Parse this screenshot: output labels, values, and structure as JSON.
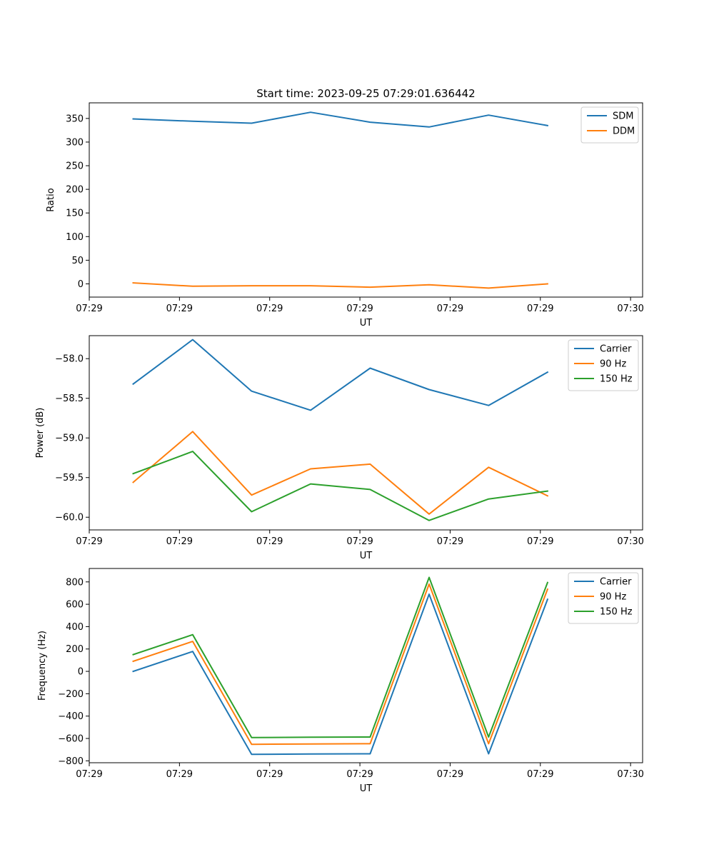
{
  "chart_data": [
    {
      "type": "line",
      "title": "Start time: 2023-09-25 07:29:01.636442",
      "xlabel": "UT",
      "ylabel": "Ratio",
      "xlim": [
        0,
        9.2
      ],
      "ylim": [
        -28,
        383
      ],
      "xtick_positions": [
        0,
        1.5,
        3,
        4.5,
        6,
        7.5,
        9
      ],
      "xticks": [
        "07:29",
        "07:29",
        "07:29",
        "07:29",
        "07:29",
        "07:29",
        "07:30"
      ],
      "yticks": [
        0,
        50,
        100,
        150,
        200,
        250,
        300,
        350
      ],
      "ytick_labels": [
        "0",
        "50",
        "100",
        "150",
        "200",
        "250",
        "300",
        "350"
      ],
      "legend_position": "top-right",
      "x": [
        0.73,
        1.72,
        2.7,
        3.68,
        4.67,
        5.65,
        6.64,
        7.62
      ],
      "series": [
        {
          "name": "SDM",
          "color": "#1f77b4",
          "values": [
            349,
            344,
            340,
            363,
            342,
            332,
            357,
            335
          ]
        },
        {
          "name": "DDM",
          "color": "#ff7f0e",
          "values": [
            2,
            -5,
            -4,
            -4,
            -7,
            -2,
            -9,
            0
          ]
        }
      ]
    },
    {
      "type": "line",
      "title": "",
      "xlabel": "UT",
      "ylabel": "Power (dB)",
      "xlim": [
        0,
        9.2
      ],
      "ylim": [
        -60.16,
        -57.71
      ],
      "xtick_positions": [
        0,
        1.5,
        3,
        4.5,
        6,
        7.5,
        9
      ],
      "xticks": [
        "07:29",
        "07:29",
        "07:29",
        "07:29",
        "07:29",
        "07:29",
        "07:30"
      ],
      "yticks": [
        -60,
        -59.5,
        -59,
        -58.5,
        -58
      ],
      "ytick_labels": [
        "−60.0",
        "−59.5",
        "−59.0",
        "−58.5",
        "−58.0"
      ],
      "legend_position": "top-right",
      "x": [
        0.73,
        1.72,
        2.7,
        3.68,
        4.67,
        5.65,
        6.64,
        7.62
      ],
      "series": [
        {
          "name": "Carrier",
          "color": "#1f77b4",
          "values": [
            -58.32,
            -57.76,
            -58.41,
            -58.65,
            -58.12,
            -58.39,
            -58.59,
            -58.17
          ]
        },
        {
          "name": "90 Hz",
          "color": "#ff7f0e",
          "values": [
            -59.56,
            -58.92,
            -59.72,
            -59.39,
            -59.33,
            -59.96,
            -59.37,
            -59.73
          ]
        },
        {
          "name": "150 Hz",
          "color": "#2ca02c",
          "values": [
            -59.45,
            -59.17,
            -59.93,
            -59.58,
            -59.65,
            -60.04,
            -59.77,
            -59.67
          ]
        }
      ]
    },
    {
      "type": "line",
      "title": "",
      "xlabel": "UT",
      "ylabel": "Frequency (Hz)",
      "xlim": [
        0,
        9.2
      ],
      "ylim": [
        -817,
        920
      ],
      "xtick_positions": [
        0,
        1.5,
        3,
        4.5,
        6,
        7.5,
        9
      ],
      "xticks": [
        "07:29",
        "07:29",
        "07:29",
        "07:29",
        "07:29",
        "07:29",
        "07:30"
      ],
      "yticks": [
        -800,
        -600,
        -400,
        -200,
        0,
        200,
        400,
        600,
        800
      ],
      "ytick_labels": [
        "−800",
        "−600",
        "−400",
        "−200",
        "0",
        "200",
        "400",
        "600",
        "800"
      ],
      "legend_position": "top-right",
      "x": [
        0.73,
        1.72,
        2.7,
        3.68,
        4.67,
        5.65,
        6.64,
        7.62
      ],
      "series": [
        {
          "name": "Carrier",
          "color": "#1f77b4",
          "values": [
            0,
            178,
            -742,
            -739,
            -737,
            690,
            -737,
            644
          ]
        },
        {
          "name": "90 Hz",
          "color": "#ff7f0e",
          "values": [
            90,
            268,
            -652,
            -649,
            -647,
            780,
            -647,
            734
          ]
        },
        {
          "name": "150 Hz",
          "color": "#2ca02c",
          "values": [
            150,
            328,
            -592,
            -589,
            -587,
            840,
            -587,
            794
          ]
        }
      ]
    }
  ]
}
